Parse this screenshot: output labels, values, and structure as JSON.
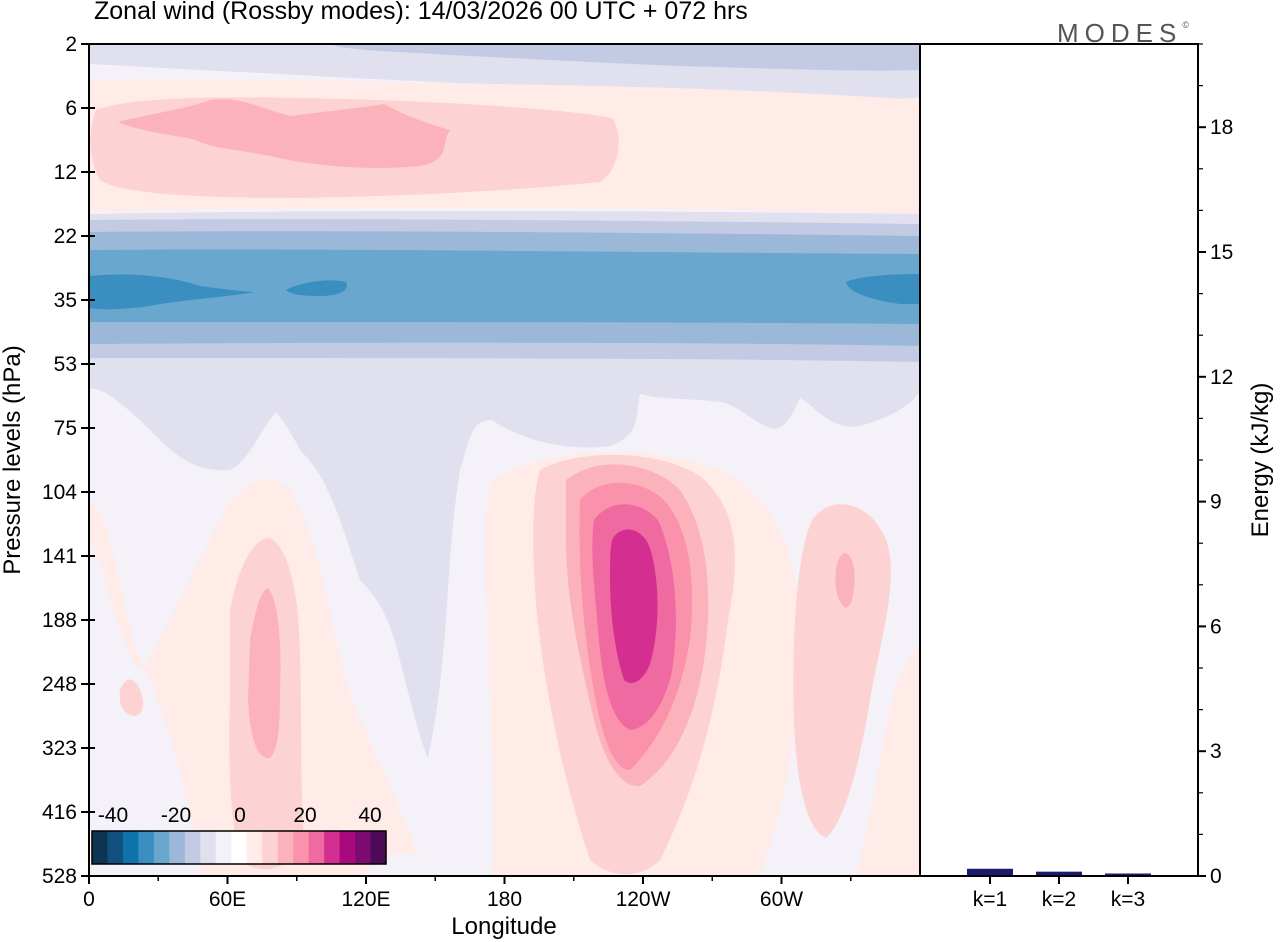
{
  "title": "Zonal wind (Rossby modes):  14/03/2026  00 UTC  + 072 hrs",
  "logo": {
    "text": "MODES",
    "mark": "©"
  },
  "chart_data": [
    {
      "type": "heatmap",
      "title": "Zonal wind (Rossby modes):  14/03/2026  00 UTC  + 072 hrs",
      "xlabel": "Longitude",
      "ylabel": "Pressure levels (hPa)",
      "x_ticks": [
        "0",
        "60E",
        "120E",
        "180",
        "120W",
        "60W"
      ],
      "y_ticks": [
        "2",
        "6",
        "12",
        "22",
        "35",
        "53",
        "75",
        "104",
        "141",
        "188",
        "248",
        "323",
        "416",
        "528"
      ],
      "y_scale": "pressure-levels (inverted, top = 2 hPa)",
      "colorbar": {
        "tick_labels": [
          "-40",
          "-20",
          "0",
          "20",
          "40"
        ],
        "colors": [
          "#0d3552",
          "#10507e",
          "#0e73aa",
          "#3a8fc0",
          "#6aa7cf",
          "#9cb8d9",
          "#c3cae4",
          "#e1e0ee",
          "#f4f1f8",
          "#ffffff",
          "#ffebe8",
          "#fcd2d2",
          "#fbb2bb",
          "#f992aa",
          "#f06aa2",
          "#d52e91",
          "#a8097c",
          "#7b0b70",
          "#4d0a56"
        ],
        "placement": "bottom-left inside plot"
      },
      "features": [
        {
          "desc": "weak westerly band",
          "level_range": [
            6,
            12
          ],
          "lon_range": [
            0,
            180
          ],
          "value_range": [
            5,
            10
          ]
        },
        {
          "desc": "easterly jet",
          "level_range": [
            22,
            53
          ],
          "lon_range": [
            0,
            360
          ],
          "value_range": [
            -30,
            -10
          ]
        },
        {
          "desc": "westerly jet core",
          "level_range": [
            141,
            248
          ],
          "lon_range": [
            225,
            255
          ],
          "value_range": [
            25,
            35
          ]
        },
        {
          "desc": "weak westerly maxima",
          "level_range": [
            141,
            323
          ],
          "lon_range": [
            65,
            80
          ],
          "value_range": [
            5,
            10
          ]
        },
        {
          "desc": "weak westerly maximum",
          "level_range": [
            141,
            188
          ],
          "lon_range": [
            320,
            335
          ],
          "value_range": [
            5,
            10
          ]
        }
      ]
    },
    {
      "type": "bar",
      "ylabel": "Energy (kJ/kg)",
      "categories": [
        "k=1",
        "k=2",
        "k=3"
      ],
      "values": [
        0.15,
        0.08,
        0.03
      ],
      "ylim": [
        0,
        20
      ],
      "y_ticks": [
        "0",
        "3",
        "6",
        "9",
        "12",
        "15",
        "18"
      ],
      "bar_color": "#1a1a6e"
    }
  ]
}
